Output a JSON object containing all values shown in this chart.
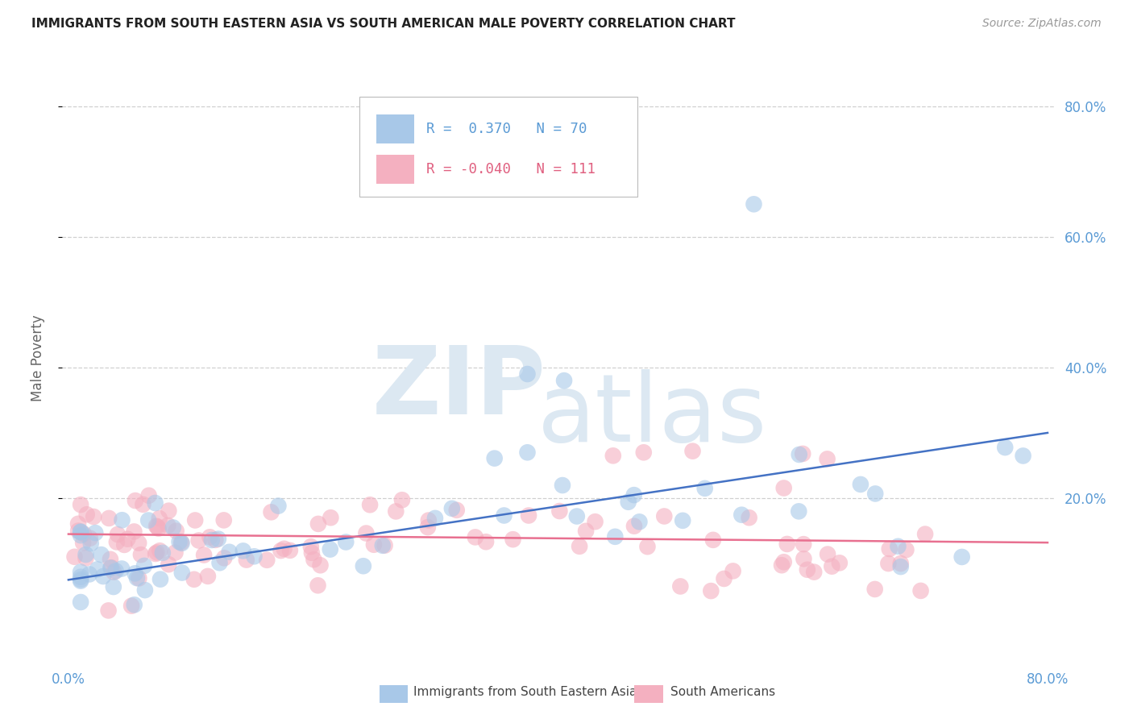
{
  "title": "IMMIGRANTS FROM SOUTH EASTERN ASIA VS SOUTH AMERICAN MALE POVERTY CORRELATION CHART",
  "source": "Source: ZipAtlas.com",
  "ylabel": "Male Poverty",
  "legend_blue_r": "0.370",
  "legend_blue_n": "70",
  "legend_pink_r": "-0.040",
  "legend_pink_n": "111",
  "legend_blue_label": "Immigrants from South Eastern Asia",
  "legend_pink_label": "South Americans",
  "color_blue": "#a8c8e8",
  "color_pink": "#f4b0c0",
  "trendline_blue": "#4472c4",
  "trendline_pink": "#e87090",
  "text_color": "#5b9bd5",
  "grid_color": "#d0d0d0",
  "trendline_blue_x0": 0.0,
  "trendline_blue_y0": 0.075,
  "trendline_blue_x1": 0.8,
  "trendline_blue_y1": 0.3,
  "trendline_pink_x0": 0.0,
  "trendline_pink_y0": 0.145,
  "trendline_pink_x1": 0.8,
  "trendline_pink_y1": 0.132,
  "xlim": [
    0.0,
    0.8
  ],
  "ylim": [
    -0.05,
    0.88
  ],
  "ytick_values": [
    0.2,
    0.4,
    0.6,
    0.8
  ],
  "ytick_labels": [
    "20.0%",
    "40.0%",
    "60.0%",
    "80.0%"
  ]
}
